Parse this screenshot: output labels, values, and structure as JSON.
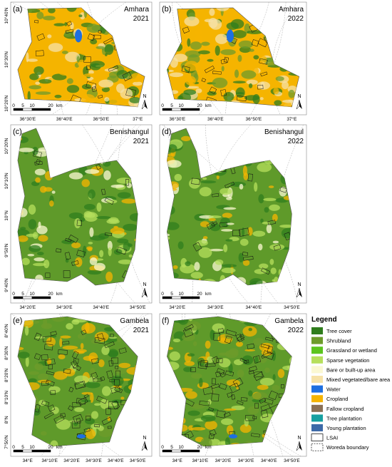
{
  "panels": [
    {
      "label": "(a)",
      "region": "Amhara",
      "year": "2021",
      "lat_ticks": [
        "10°40'N",
        "10°30'N",
        "10°20'N"
      ],
      "lon_ticks": [
        "36°30'E",
        "36°40'E",
        "36°50'E",
        "37°E"
      ],
      "scale": [
        "0",
        "5",
        "10",
        "20",
        "km"
      ],
      "north": "N"
    },
    {
      "label": "(b)",
      "region": "Amhara",
      "year": "2022",
      "lon_ticks": [
        "36°30'E",
        "36°40'E",
        "36°50'E",
        "37°E"
      ],
      "scale": [
        "0",
        "5",
        "10",
        "20",
        "km"
      ],
      "north": "N"
    },
    {
      "label": "(c)",
      "region": "Benishangul",
      "year": "2021",
      "lat_ticks": [
        "10°20'N",
        "10°10'N",
        "10°N",
        "9°50'N",
        "9°40'N"
      ],
      "lon_ticks": [
        "34°20'E",
        "34°30'E",
        "34°40'E",
        "34°50'E"
      ],
      "scale": [
        "0",
        "5",
        "10",
        "20",
        "km"
      ],
      "north": "N"
    },
    {
      "label": "(d)",
      "region": "Benishangul",
      "year": "2022",
      "lon_ticks": [
        "34°20'E",
        "34°30'E",
        "34°40'E",
        "34°50'E"
      ],
      "scale": [
        "0",
        "5",
        "10",
        "20",
        "km"
      ],
      "north": "N"
    },
    {
      "label": "(e)",
      "region": "Gambela",
      "year": "2021",
      "lat_ticks": [
        "8°40'N",
        "8°30'N",
        "8°20'N",
        "8°10'N",
        "8°N",
        "7°50'N"
      ],
      "lon_ticks": [
        "34°E",
        "34°10'E",
        "34°20'E",
        "34°30'E",
        "34°40'E",
        "34°50'E"
      ],
      "scale": [
        "0",
        "5",
        "10",
        "20",
        "km"
      ],
      "north": "N"
    },
    {
      "label": "(f)",
      "region": "Gambela",
      "year": "2022",
      "lon_ticks": [
        "34°E",
        "34°10'E",
        "34°20'E",
        "34°30'E",
        "34°40'E",
        "34°50'E"
      ],
      "scale": [
        "0",
        "5",
        "10",
        "20",
        "km"
      ],
      "north": "N"
    }
  ],
  "legend": {
    "title": "Legend",
    "items": [
      {
        "name": "Tree cover",
        "color": "#2f7d1d"
      },
      {
        "name": "Shrubland",
        "color": "#6d9b2b"
      },
      {
        "name": "Grassland or wetland",
        "color": "#5cc41e"
      },
      {
        "name": "Sparse vegetation",
        "color": "#b6df5c"
      },
      {
        "name": "Bare or built-up area",
        "color": "#fbf8d2"
      },
      {
        "name": "Mixed vegetated/bare area",
        "color": "#f6e2a8"
      },
      {
        "name": "Water",
        "color": "#1e6fe0"
      },
      {
        "name": "Cropland",
        "color": "#f5b400"
      },
      {
        "name": "Fallow cropland",
        "color": "#8a7055"
      },
      {
        "name": "Tree plantation",
        "color": "#17a0a0"
      },
      {
        "name": "Young plantation",
        "color": "#3d6aa8"
      },
      {
        "name": "LSAI",
        "color": "#ffffff",
        "border": "solid"
      },
      {
        "name": "Woreda boundary",
        "color": "#ffffff",
        "border": "dashed"
      }
    ]
  }
}
